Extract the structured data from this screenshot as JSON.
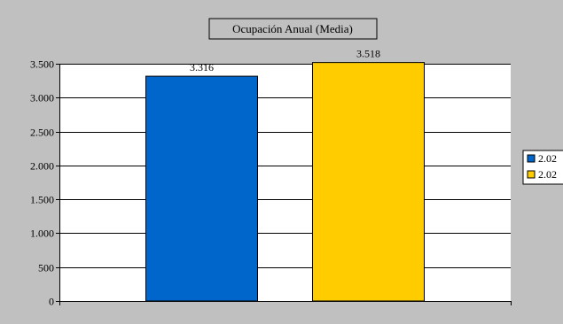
{
  "chart_data": {
    "type": "bar",
    "title": "Ocupación Anual (Media)",
    "categories": [
      ""
    ],
    "series": [
      {
        "name": "2.02",
        "values": [
          3316
        ],
        "value_label": "3.316",
        "color": "#0066CC"
      },
      {
        "name": "2.02",
        "values": [
          3518
        ],
        "value_label": "3.518",
        "color": "#FFCC00"
      }
    ],
    "xlabel": "",
    "ylabel": "",
    "ylim": [
      0,
      3500
    ],
    "yticks": [
      0,
      500,
      1000,
      1500,
      2000,
      2500,
      3000,
      3500
    ],
    "ytick_labels": [
      "0",
      "500",
      "1.000",
      "1.500",
      "2.000",
      "2.500",
      "3.000",
      "3.500"
    ],
    "grid": true,
    "legend_position": "right",
    "colors": {
      "chart_area": "#C0C0C0",
      "plot_area": "#FFFFFF",
      "title_box": "#C0C0C0",
      "gridline": "#000000"
    }
  }
}
